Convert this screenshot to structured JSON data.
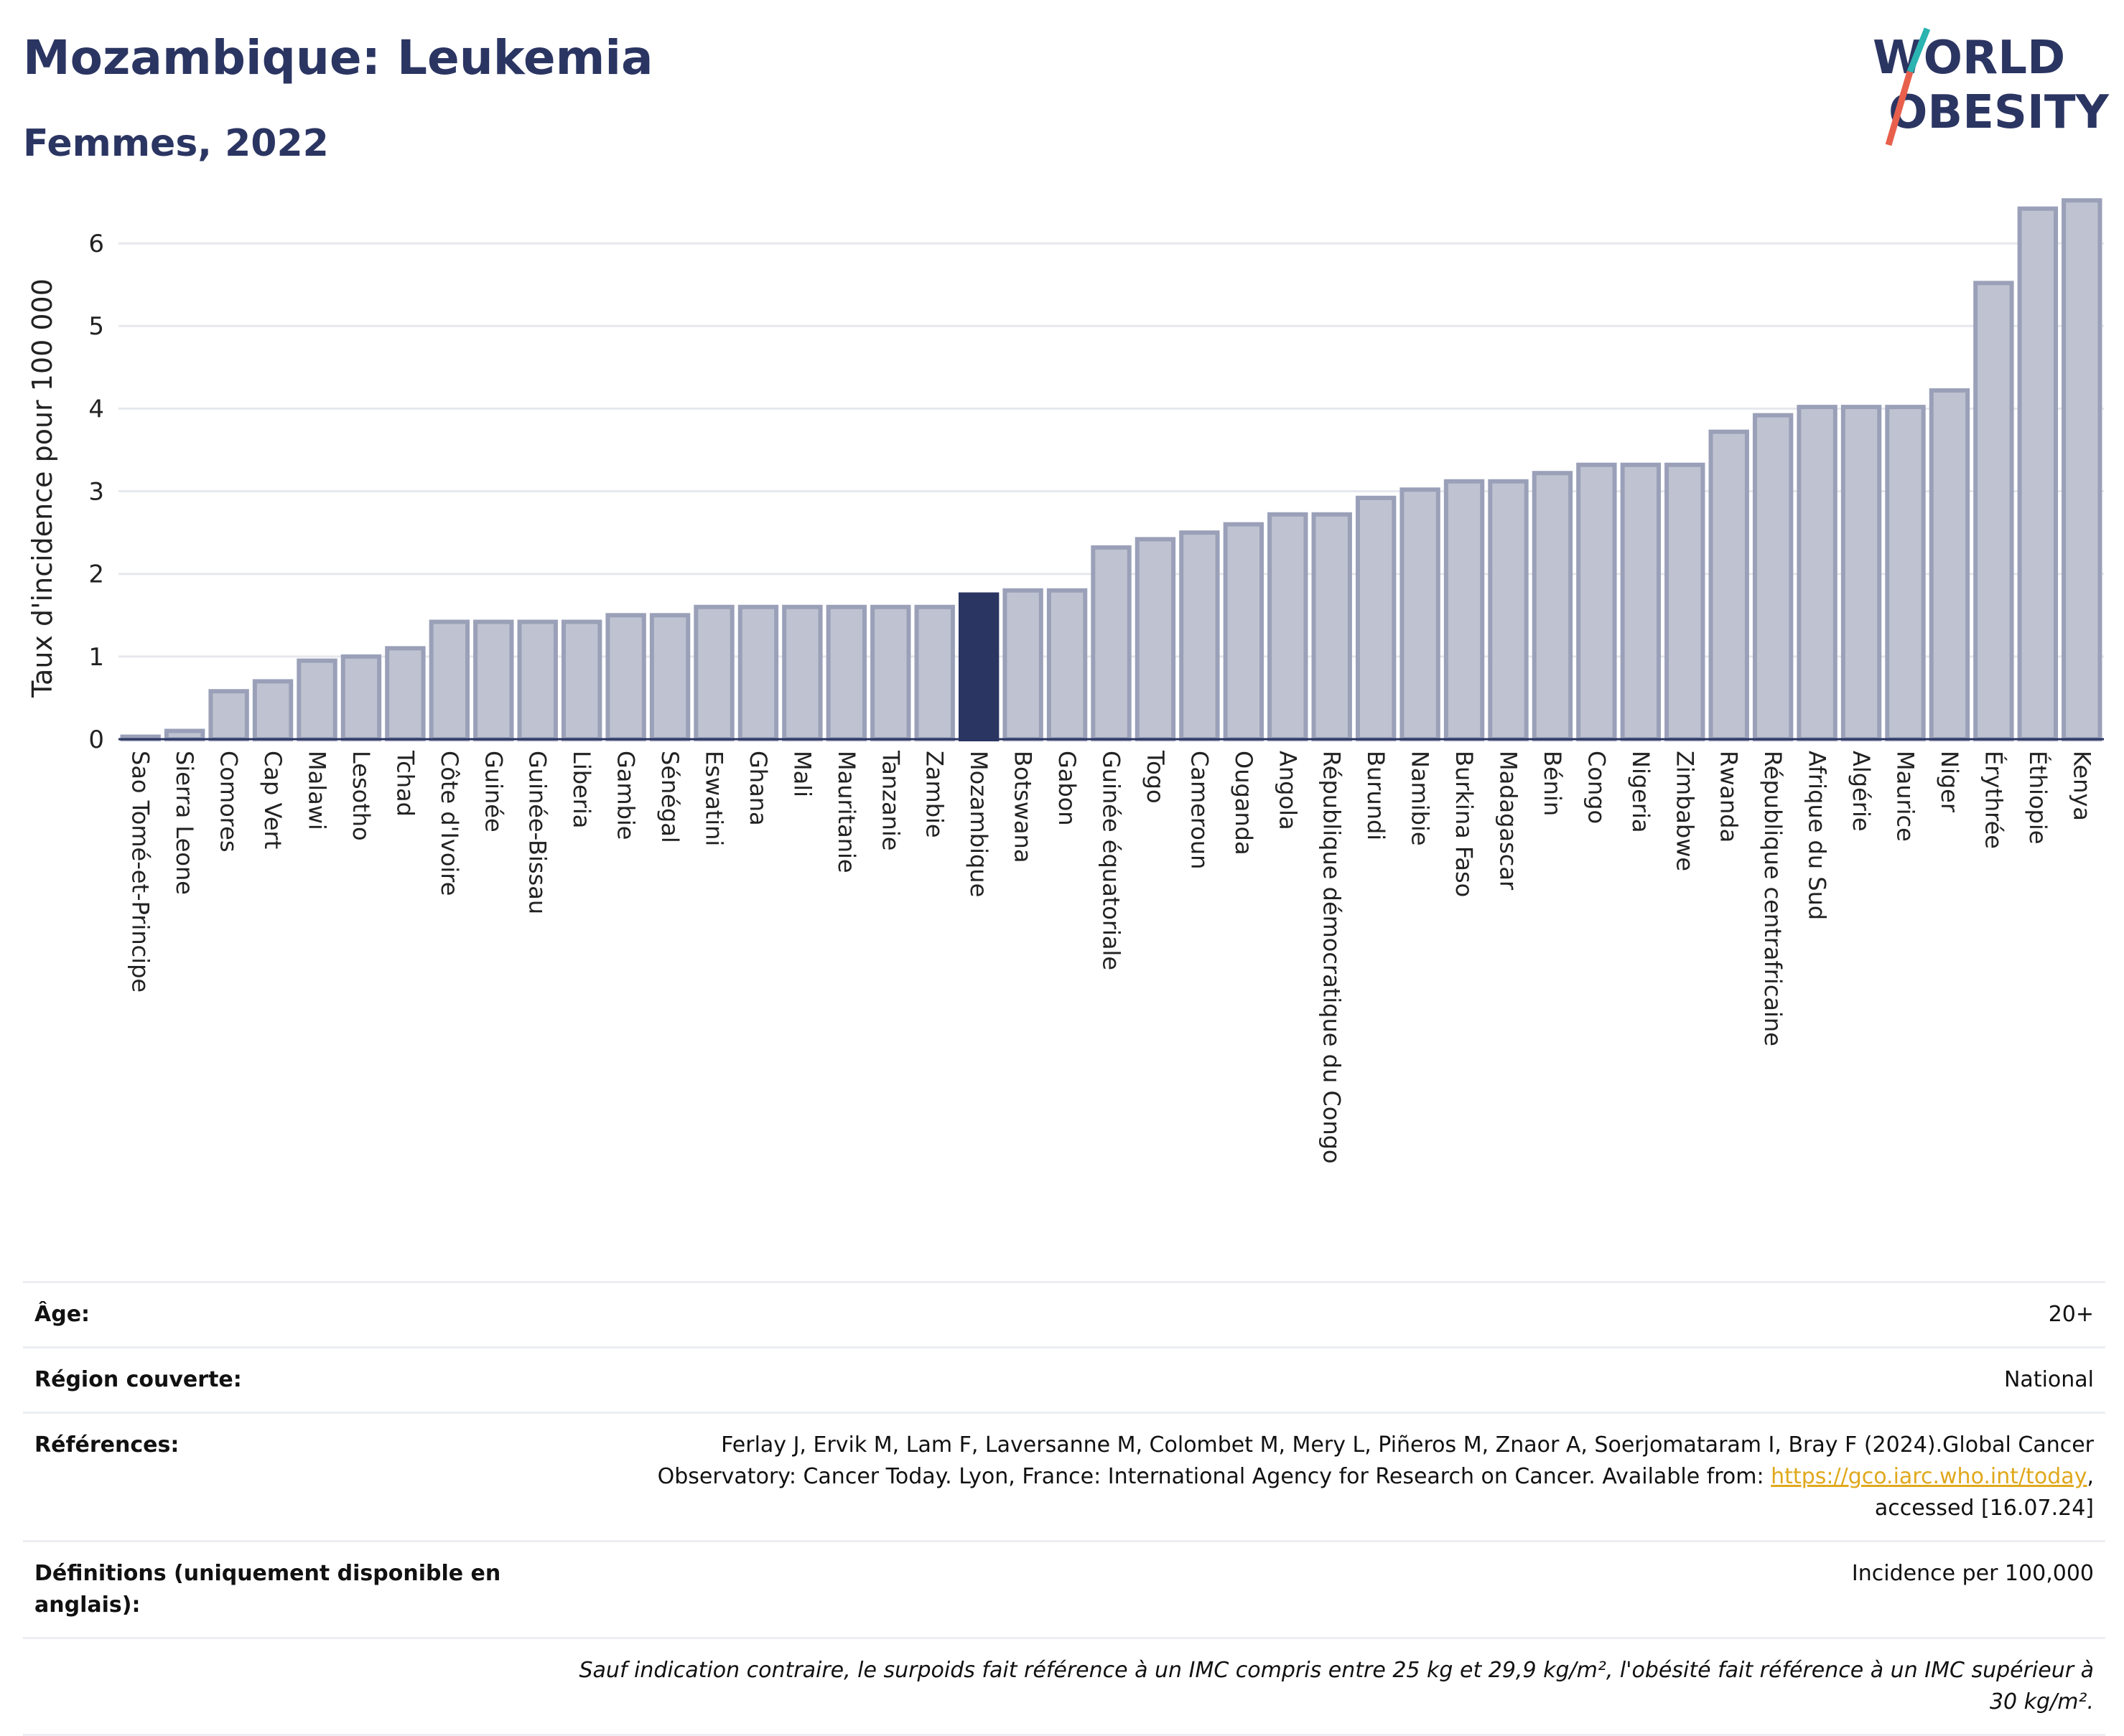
{
  "header": {
    "title": "Mozambique: Leukemia",
    "subtitle": "Femmes, 2022"
  },
  "logo": {
    "line1": "WORLD",
    "line2": "OBESITY"
  },
  "colors": {
    "bar_default": "#bfc3d1",
    "bar_default_stroke": "#9aa0b8",
    "bar_highlight": "#2b3562",
    "title": "#2b3562",
    "link": "#e0a81c"
  },
  "chart_data": {
    "type": "bar",
    "ylabel": "Taux d'incidence pour 100 000",
    "ylim": [
      0,
      6.6
    ],
    "yticks": [
      0,
      1,
      2,
      3,
      4,
      5,
      6
    ],
    "grid": true,
    "highlight": "Mozambique",
    "categories": [
      "Sao Tomé-et-Principe",
      "Sierra Leone",
      "Comores",
      "Cap Vert",
      "Malawi",
      "Lesotho",
      "Tchad",
      "Côte d'Ivoire",
      "Guinée",
      "Guinée-Bissau",
      "Liberia",
      "Gambie",
      "Sénégal",
      "Eswatini",
      "Ghana",
      "Mali",
      "Mauritanie",
      "Tanzanie",
      "Zambie",
      "Mozambique",
      "Botswana",
      "Gabon",
      "Guinée équatoriale",
      "Togo",
      "Cameroun",
      "Ouganda",
      "Angola",
      "République démocratique du Congo",
      "Burundi",
      "Namibie",
      "Burkina Faso",
      "Madagascar",
      "Bénin",
      "Congo",
      "Nigeria",
      "Zimbabwe",
      "Rwanda",
      "République centrafricaine",
      "Afrique du Sud",
      "Algérie",
      "Maurice",
      "Niger",
      "Érythrée",
      "Éthiopie",
      "Kenya"
    ],
    "values": [
      0.03,
      0.1,
      0.58,
      0.7,
      0.95,
      1.0,
      1.1,
      1.42,
      1.42,
      1.42,
      1.42,
      1.5,
      1.5,
      1.6,
      1.6,
      1.6,
      1.6,
      1.6,
      1.6,
      1.75,
      1.8,
      1.8,
      2.32,
      2.42,
      2.5,
      2.6,
      2.72,
      2.72,
      2.92,
      3.02,
      3.12,
      3.12,
      3.22,
      3.32,
      3.32,
      3.32,
      3.72,
      3.92,
      4.02,
      4.02,
      4.02,
      4.22,
      5.52,
      6.42,
      6.52
    ]
  },
  "info": {
    "age_label": "Âge:",
    "age_value": "20+",
    "region_label": "Région couverte:",
    "region_value": "National",
    "refs_label": "Références:",
    "refs_text_1": "Ferlay J, Ervik M, Lam F, Laversanne M, Colombet M, Mery L, Piñeros M, Znaor A, Soerjomataram I, Bray F (2024).Global Cancer",
    "refs_text_2": "Observatory: Cancer Today. Lyon, France: International Agency for Research on Cancer. Available from: ",
    "refs_link": "https://gco.iarc.who.int/today",
    "refs_text_3": ",",
    "refs_text_4": "accessed [16.07.24]",
    "defs_label": "Définitions (uniquement disponible en anglais):",
    "defs_value": "Incidence per 100,000",
    "footnote": "Sauf indication contraire, le surpoids fait référence à un IMC compris entre 25 kg et 29,9 kg/m², l'obésité fait référence à un IMC supérieur à 30 kg/m²."
  }
}
